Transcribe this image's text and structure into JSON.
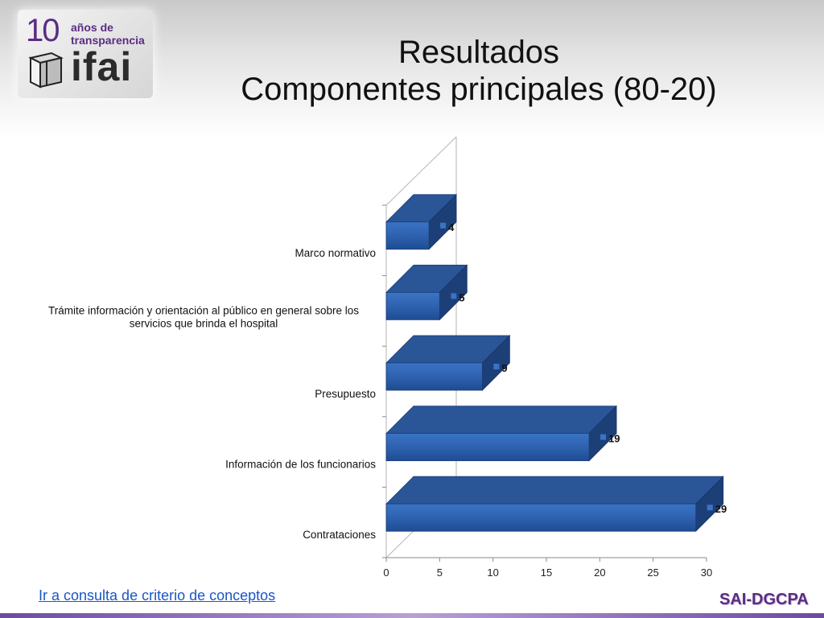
{
  "logo": {
    "number": "10",
    "line1": "años de",
    "line2": "transparencia",
    "word": "ifai"
  },
  "title": {
    "line1": "Resultados",
    "line2": "Componentes principales (80-20)"
  },
  "chart_data": {
    "type": "bar",
    "orientation": "horizontal",
    "style": "3d",
    "categories": [
      "Marco normativo",
      "Trámite información y orientación al público en general sobre los servicios que brinda el hospital",
      "Presupuesto",
      "Información de los funcionarios",
      "Contrataciones"
    ],
    "category_lines": [
      [
        "Marco normativo"
      ],
      [
        "Trámite información y orientación al público en general sobre los",
        "servicios que brinda el hospital"
      ],
      [
        "Presupuesto"
      ],
      [
        "Información de los funcionarios"
      ],
      [
        "Contrataciones"
      ]
    ],
    "values": [
      4,
      5,
      9,
      19,
      29
    ],
    "data_labels": [
      "4",
      "5",
      "9",
      "19",
      "29"
    ],
    "xlim": [
      0,
      30
    ],
    "ticks": [
      "0",
      "5",
      "10",
      "15",
      "20",
      "25",
      "30"
    ],
    "tick_values": [
      0,
      5,
      10,
      15,
      20,
      25,
      30
    ],
    "bar_color": "#2e62b0",
    "bar_top_color": "#2a5597",
    "bar_side_color": "#1d3f78",
    "grid": false,
    "legend": false
  },
  "footer": {
    "link_text": "Ir a consulta de criterio de conceptos",
    "brand": "SAI-DGCPA"
  },
  "colors": {
    "link": "#1a56c4",
    "brand": "#5a2d82"
  }
}
